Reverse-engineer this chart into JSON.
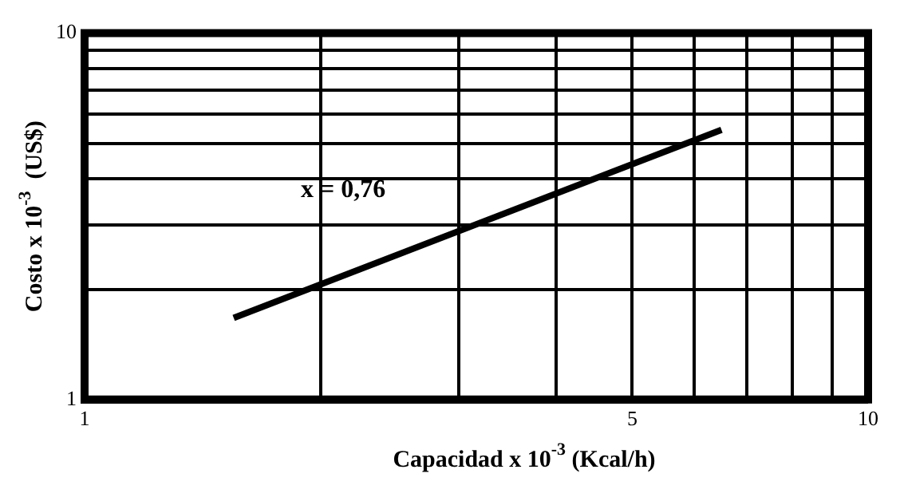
{
  "chart_data": {
    "type": "line",
    "xlabel": "Capacidad x 10$^{-3}$ (Kcal/h)",
    "ylabel": "Costo x 10$^{-3}$  (US$)",
    "log": "xy",
    "grid": true,
    "legend": false,
    "marker": "none",
    "line_style": "solid",
    "xlim": [
      1,
      10
    ],
    "ylim": [
      1,
      10
    ],
    "xticks": [
      1,
      {
        "value": 2,
        "label": null
      },
      {
        "value": 3,
        "label": null
      },
      {
        "value": 4,
        "label": null
      },
      5,
      {
        "value": 6,
        "label": null
      },
      {
        "value": 7,
        "label": null
      },
      {
        "value": 8,
        "label": null
      },
      {
        "value": 9,
        "label": null
      },
      10
    ],
    "yticks": [
      1,
      {
        "value": 2,
        "label": null
      },
      {
        "value": 3,
        "label": null
      },
      {
        "value": 4,
        "label": null
      },
      {
        "value": 5,
        "label": null
      },
      {
        "value": 6,
        "label": null
      },
      {
        "value": 7,
        "label": null
      },
      {
        "value": 8,
        "label": null
      },
      {
        "value": 9,
        "label": null
      },
      10
    ],
    "series": [
      {
        "color": "#000000",
        "x": [
          1.55,
          6.5
        ],
        "values": [
          1.67,
          5.45
        ]
      }
    ],
    "annotations": [
      "x = 0,76"
    ]
  }
}
